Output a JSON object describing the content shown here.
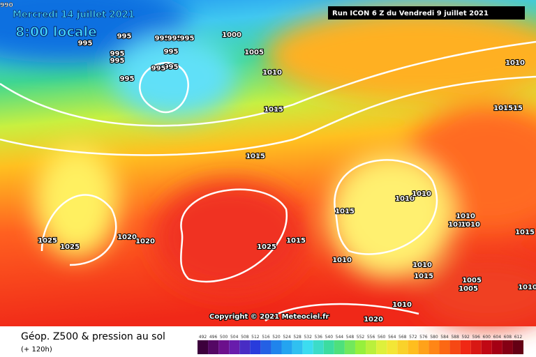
{
  "header": {
    "date": "Mercredi 14 juillet 2021",
    "time": "8:00 locale",
    "run": "Run ICON 6 Z du Vendredi 9 juillet 2021",
    "corner": "990"
  },
  "isobar_labels": [
    "995",
    "995",
    "995",
    "995",
    "995",
    "995",
    "995",
    "995",
    "995",
    "995",
    "995",
    "1000",
    "1005",
    "1010",
    "1015",
    "1015",
    "1015",
    "1020",
    "1020",
    "1025",
    "1025",
    "1025",
    "1015",
    "1010",
    "1010",
    "1010",
    "1010",
    "1015",
    "1010",
    "1015",
    "1010",
    "1005",
    "1005",
    "1010",
    "1015",
    "101515",
    "1010",
    "1010",
    "1020"
  ],
  "copyright": "Copyright © 2021 Meteociel.fr",
  "footer": {
    "title": "Géop. Z500 & pression au sol",
    "lead": "(+ 120h)"
  },
  "legend": {
    "labels": [
      492,
      496,
      500,
      504,
      508,
      512,
      516,
      520,
      524,
      528,
      532,
      536,
      540,
      544,
      548,
      552,
      556,
      560,
      564,
      568,
      572,
      576,
      580,
      584,
      588,
      592,
      596,
      600,
      604,
      608,
      612
    ]
  }
}
